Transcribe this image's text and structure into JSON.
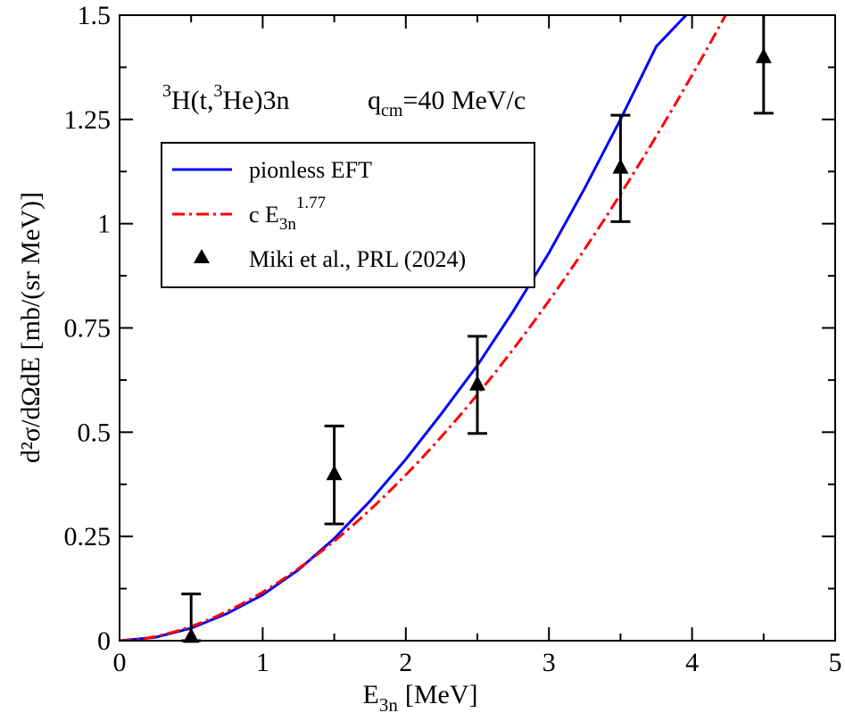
{
  "chart_data": {
    "type": "line",
    "xlabel": "E",
    "xlabel_sub": "3n",
    "xlabel_unit": "[MeV]",
    "ylabel": "d²σ/dΩdE [mb/(sr MeV)]",
    "xlim": [
      0,
      5
    ],
    "ylim": [
      0,
      1.5
    ],
    "xticks": [
      0,
      1,
      2,
      3,
      4,
      5
    ],
    "xtick_labels": [
      "0",
      "1",
      "2",
      "3",
      "4",
      "5"
    ],
    "yticks": [
      0,
      0.25,
      0.5,
      0.75,
      1,
      1.25,
      1.5
    ],
    "ytick_labels": [
      "0",
      "0.25",
      "0.5",
      "0.75",
      "1",
      "1.25",
      "1.5"
    ],
    "annotation": {
      "reaction_sup1": "3",
      "reaction_part1": "H(t,",
      "reaction_sup2": "3",
      "reaction_part2": "He)3n",
      "q_main": "q",
      "q_sub": "cm",
      "q_value": "=40 MeV/c"
    },
    "legend_position": "upper-left",
    "series": [
      {
        "name": "pionless EFT",
        "style": "solid",
        "color": "#0000ff",
        "x": [
          0,
          0.25,
          0.5,
          0.75,
          1.0,
          1.25,
          1.5,
          1.75,
          2.0,
          2.25,
          2.5,
          2.75,
          3.0,
          3.25,
          3.5,
          3.75,
          4.0
        ],
        "y": [
          0,
          0.008,
          0.03,
          0.065,
          0.11,
          0.17,
          0.245,
          0.335,
          0.435,
          0.545,
          0.66,
          0.79,
          0.93,
          1.085,
          1.25,
          1.425,
          1.515
        ]
      },
      {
        "name": "c E3n^1.77",
        "legend_main": "c E",
        "legend_sub": "3n",
        "legend_sup": "1.77",
        "style": "dashdot",
        "color": "#ff0000",
        "exponent": 1.77,
        "coefficient": 0.1166,
        "x_range": [
          0,
          4.25
        ]
      },
      {
        "name": "Miki et al., PRL (2024)",
        "style": "markers",
        "marker": "triangle",
        "color": "#000000",
        "x": [
          0.5,
          1.5,
          2.5,
          3.5,
          4.5
        ],
        "y": [
          0.01,
          0.4,
          0.615,
          1.135,
          1.4
        ],
        "yerr_low": [
          0,
          0.28,
          0.497,
          1.005,
          1.265
        ],
        "yerr_high": [
          0.112,
          0.515,
          0.73,
          1.26,
          1.52
        ]
      }
    ]
  }
}
